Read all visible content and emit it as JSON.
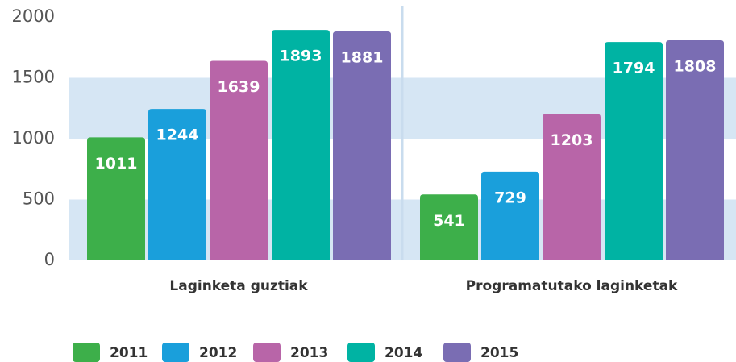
{
  "chart_data": {
    "type": "bar",
    "categories": [
      "Laginketa guztiak",
      "Programatutako laginketak"
    ],
    "series": [
      {
        "name": "2011",
        "color": "#3daf4a",
        "values": [
          1011,
          541
        ]
      },
      {
        "name": "2012",
        "color": "#1a9fdb",
        "values": [
          1244,
          729
        ]
      },
      {
        "name": "2013",
        "color": "#b865a8",
        "values": [
          1639,
          1203
        ]
      },
      {
        "name": "2014",
        "color": "#00b3a3",
        "values": [
          1893,
          1794
        ]
      },
      {
        "name": "2015",
        "color": "#7a6db3",
        "values": [
          1881,
          1808
        ]
      }
    ],
    "ylim": [
      0,
      2000
    ],
    "yticks": [
      0,
      500,
      1000,
      1500,
      2000
    ],
    "grid": true,
    "legend": "bottom"
  }
}
